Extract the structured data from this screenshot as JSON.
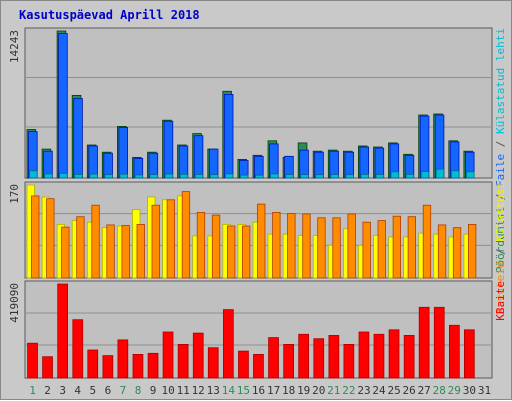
{
  "chart_data": {
    "type": "bar",
    "title": "Kasutuspäevad Aprill 2018",
    "categories": [
      "1",
      "2",
      "3",
      "4",
      "5",
      "6",
      "7",
      "8",
      "9",
      "10",
      "11",
      "12",
      "13",
      "14",
      "15",
      "16",
      "17",
      "18",
      "19",
      "20",
      "21",
      "22",
      "23",
      "24",
      "25",
      "26",
      "27",
      "28",
      "29",
      "30",
      "31"
    ],
    "weekend_days": [
      "1",
      "7",
      "8",
      "14",
      "15",
      "21",
      "22",
      "28",
      "29"
    ],
    "panels": [
      {
        "id": "top",
        "ymax_label": "14243",
        "ymax": 14243,
        "side_labels": [
          {
            "text": "Pöördumisi",
            "color": "#2e8b57"
          },
          {
            "text": " / ",
            "color": "#555555"
          },
          {
            "text": "Faile",
            "color": "#1565ff"
          },
          {
            "text": " / ",
            "color": "#555555"
          },
          {
            "text": "Külastatud lehti",
            "color": "#00bcd4"
          }
        ],
        "series": [
          {
            "name": "Pöördumisi",
            "color": "#2e8b57",
            "values": [
              4700,
              2800,
              14243,
              8000,
              3200,
              2500,
              5000,
              2000,
              2500,
              5600,
              3200,
              4300,
              2800,
              8400,
              1800,
              2200,
              3600,
              2000,
              3400,
              2600,
              2700,
              2600,
              3100,
              3000,
              3400,
              2300,
              6100,
              6200,
              3600,
              2600,
              0
            ]
          },
          {
            "name": "Faile",
            "color": "#1565ff",
            "values": [
              4500,
              2600,
              14000,
              7700,
              3100,
              2400,
              4900,
              1900,
              2400,
              5500,
              3100,
              4100,
              2800,
              8100,
              1700,
              2100,
              3300,
              2100,
              2700,
              2500,
              2600,
              2500,
              3000,
              2900,
              3300,
              2200,
              6000,
              6100,
              3500,
              2500,
              0
            ]
          },
          {
            "name": "Külastatud lehti",
            "color": "#00bcd4",
            "values": [
              700,
              400,
              450,
              350,
              380,
              330,
              370,
              300,
              330,
              380,
              360,
              340,
              330,
              400,
              280,
              270,
              400,
              330,
              330,
              320,
              330,
              320,
              350,
              330,
              600,
              350,
              620,
              850,
              700,
              600,
              0
            ]
          }
        ]
      },
      {
        "id": "mid",
        "ymax_label": "170",
        "ymax": 170,
        "side_labels": [
          {
            "text": "Arvuteid",
            "color": "#ff8c00"
          },
          {
            "text": " / ",
            "color": "#555555"
          },
          {
            "text": "Külastusi",
            "color": "#f0f000"
          }
        ],
        "series": [
          {
            "name": "Külastusi",
            "color": "#ffff00",
            "values": [
              170,
              148,
              98,
              105,
              102,
              92,
              95,
              125,
              148,
              143,
              150,
              77,
              77,
              98,
              98,
              102,
              80,
              80,
              78,
              78,
              60,
              90,
              60,
              78,
              75,
              75,
              82,
              80,
              75,
              80,
              0
            ]
          },
          {
            "name": "Arvuteid",
            "color": "#ff8c00",
            "values": [
              150,
              145,
              93,
              112,
              133,
              97,
              96,
              98,
              133,
              143,
              158,
              120,
              115,
              95,
              95,
              135,
              120,
              118,
              117,
              110,
              110,
              117,
              102,
              105,
              113,
              112,
              133,
              97,
              92,
              98,
              0
            ]
          }
        ]
      },
      {
        "id": "bot",
        "ymax_label": "419090",
        "ymax": 419090,
        "side_labels": [
          {
            "text": "KBaite",
            "color": "#ff0000"
          }
        ],
        "series": [
          {
            "name": "KBaite",
            "color": "#ff0000",
            "values": [
              155000,
              95000,
              419090,
              260000,
              125000,
              100000,
              170000,
              105000,
              110000,
              205000,
              150000,
              200000,
              135000,
              305000,
              120000,
              105000,
              180000,
              150000,
              195000,
              175000,
              190000,
              150000,
              205000,
              195000,
              215000,
              190000,
              315000,
              315000,
              235000,
              215000,
              0
            ]
          }
        ]
      }
    ]
  }
}
